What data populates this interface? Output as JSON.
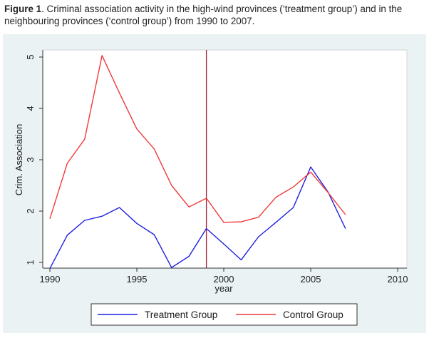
{
  "caption": {
    "label": "Figure 1",
    "text": ". Criminal association activity in the high-wind provinces (‘treatment group’) and in the neighbouring provinces (‘control group’) from 1990 to 2007."
  },
  "chart_data": {
    "type": "line",
    "title": "",
    "xlabel": "year",
    "ylabel": "Crim. Association",
    "xlim": [
      1990,
      2010
    ],
    "ylim": [
      0.85,
      5.15
    ],
    "xticks": [
      1990,
      1995,
      2000,
      2005,
      2010
    ],
    "yticks": [
      1,
      2,
      3,
      4,
      5
    ],
    "grid": false,
    "reference_line": {
      "x": 1999,
      "color": "#a0203a"
    },
    "legend_position": "bottom",
    "x": [
      1990,
      1991,
      1992,
      1993,
      1994,
      1995,
      1996,
      1997,
      1998,
      1999,
      2000,
      2001,
      2002,
      2003,
      2004,
      2005,
      2006,
      2007
    ],
    "series": [
      {
        "name": "Treatment Group",
        "color": "#1f1fe0",
        "values": [
          0.88,
          1.53,
          1.82,
          1.9,
          2.07,
          1.76,
          1.54,
          0.9,
          1.12,
          1.66,
          1.36,
          1.05,
          1.5,
          1.78,
          2.07,
          2.86,
          2.37,
          1.66
        ]
      },
      {
        "name": "Control Group",
        "color": "#f03a3a",
        "values": [
          1.85,
          2.93,
          3.4,
          5.03,
          4.3,
          3.6,
          3.21,
          2.5,
          2.08,
          2.25,
          1.78,
          1.79,
          1.88,
          2.27,
          2.47,
          2.76,
          2.36,
          1.93
        ]
      }
    ]
  }
}
